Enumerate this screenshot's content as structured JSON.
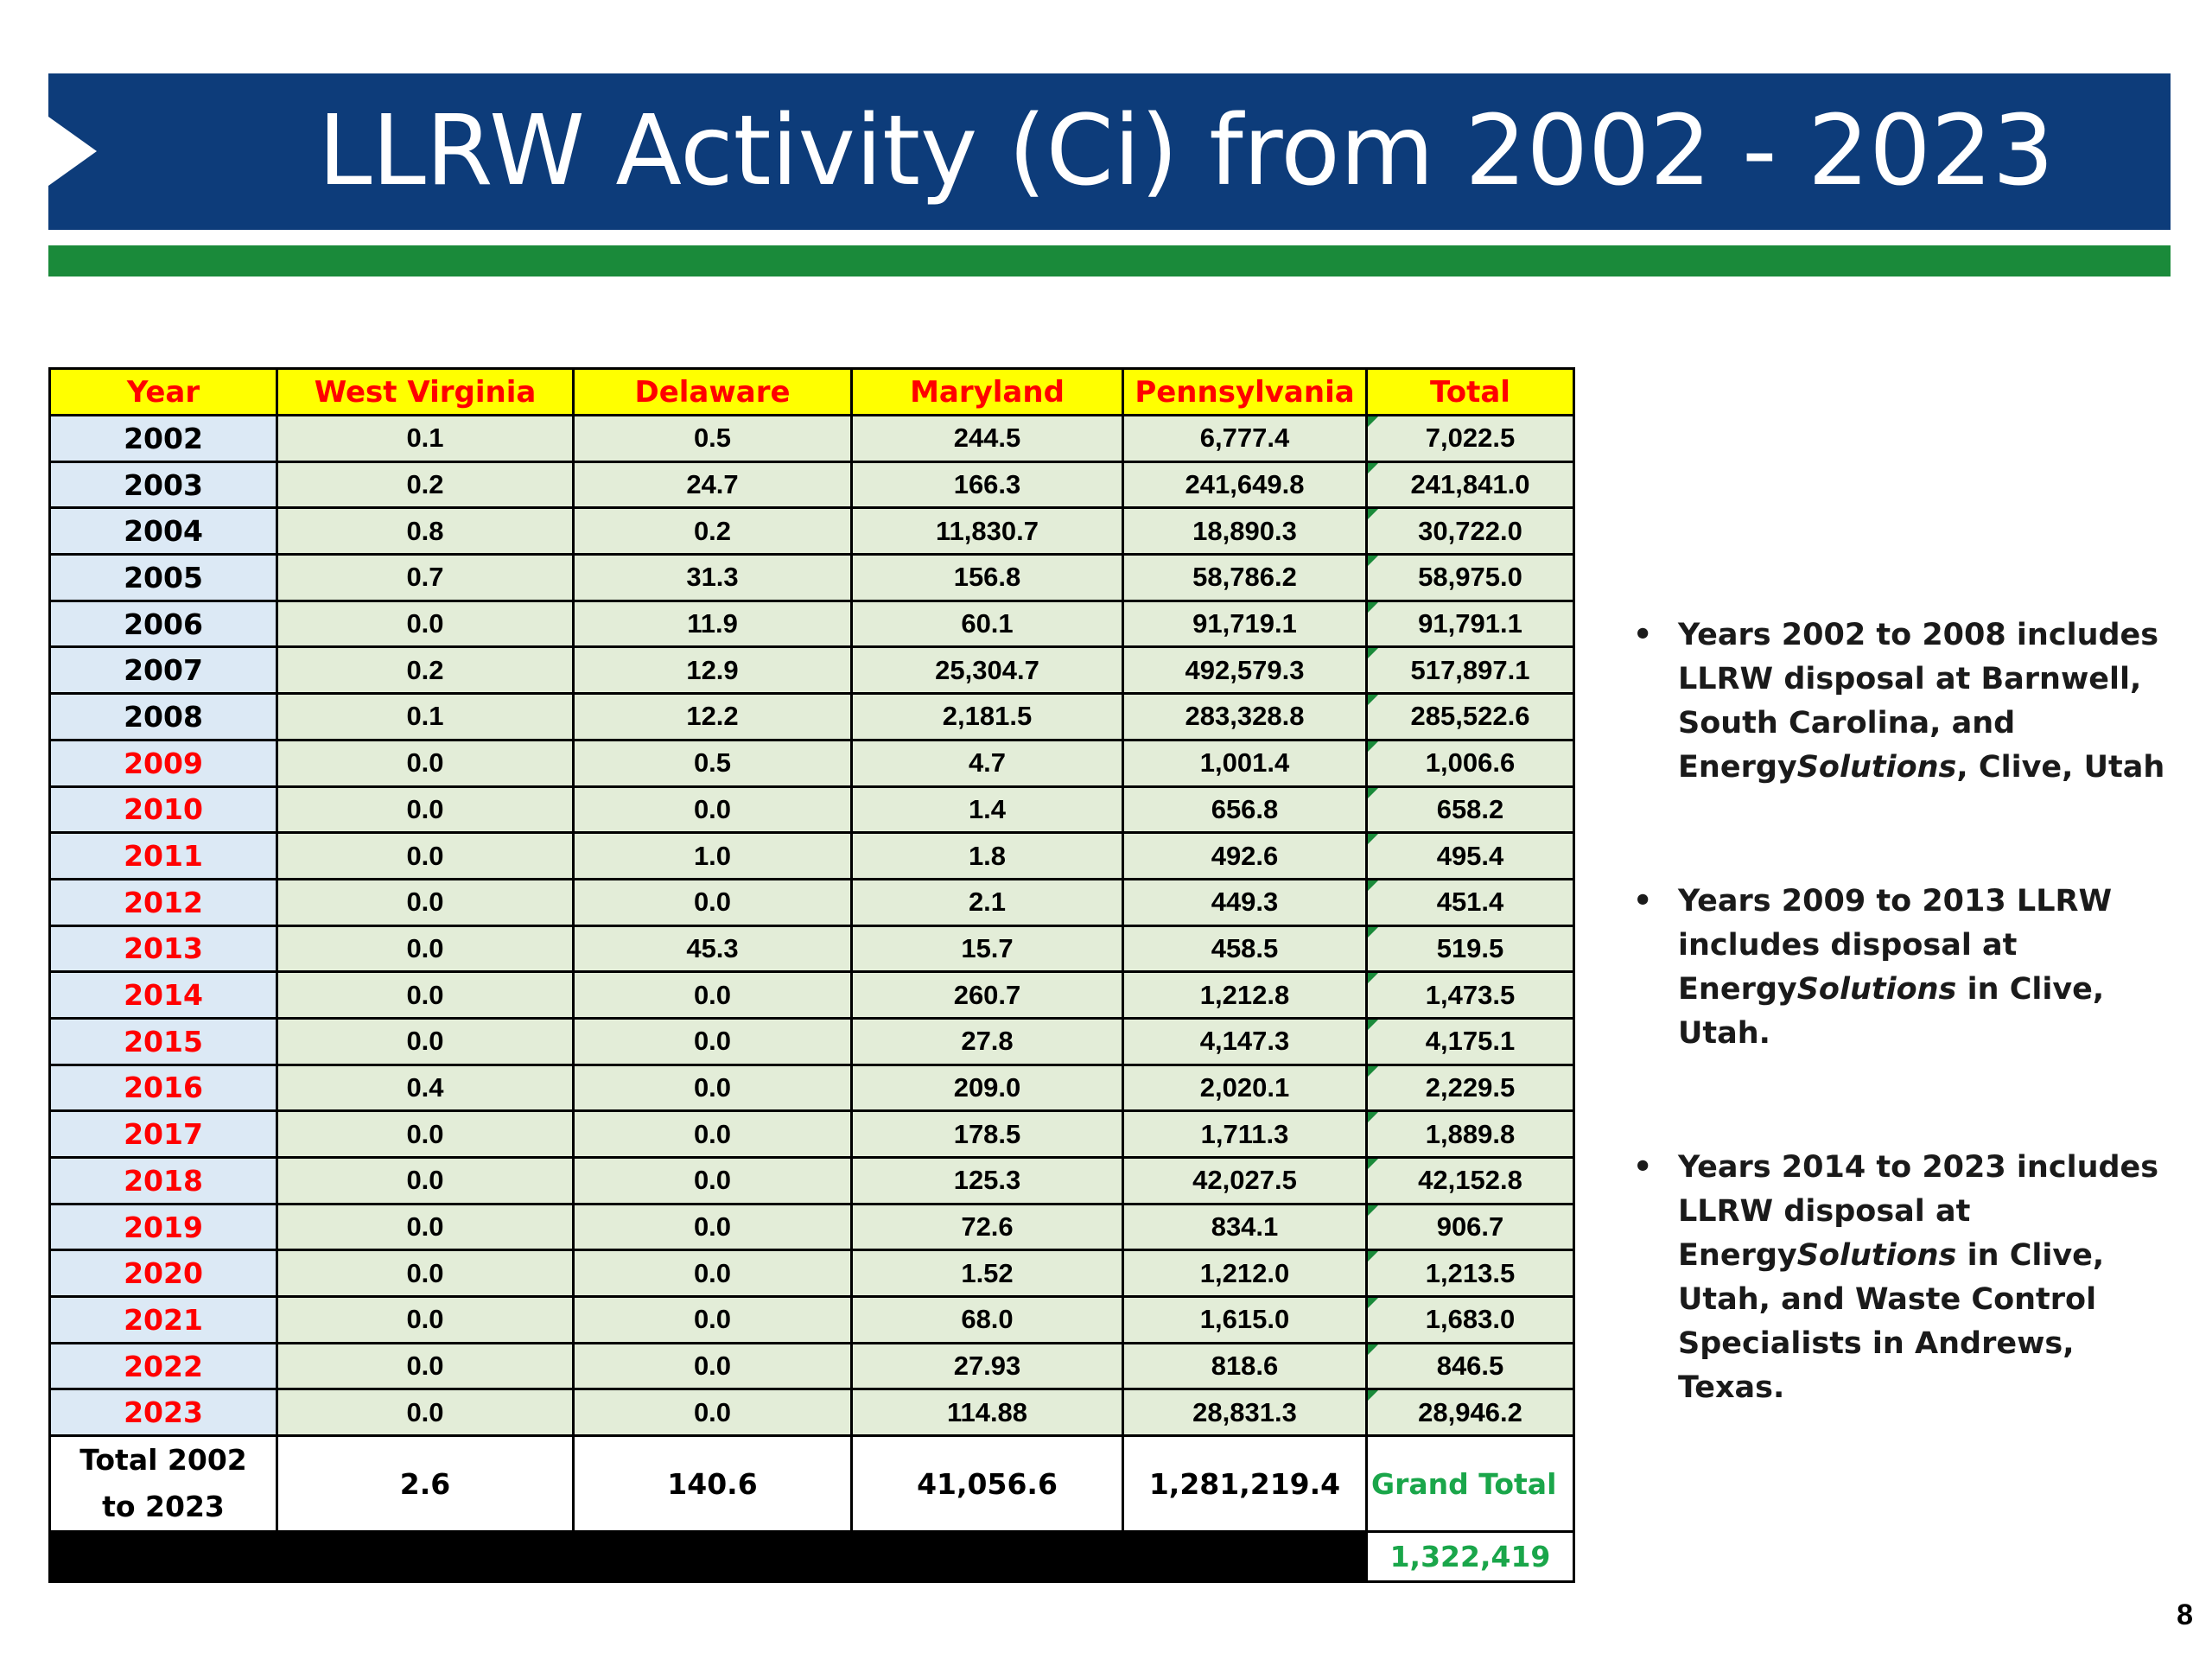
{
  "slide": {
    "title": "LLRW Activity (Ci) from 2002 - 2023",
    "page_number": "8"
  },
  "table": {
    "headers": [
      "Year",
      "West Virginia",
      "Delaware",
      "Maryland",
      "Pennsylvania",
      "Total"
    ],
    "rows": [
      [
        "2002",
        "0.1",
        "0.5",
        "244.5",
        "6,777.4",
        "7,022.5"
      ],
      [
        "2003",
        "0.2",
        "24.7",
        "166.3",
        "241,649.8",
        "241,841.0"
      ],
      [
        "2004",
        "0.8",
        "0.2",
        "11,830.7",
        "18,890.3",
        "30,722.0"
      ],
      [
        "2005",
        "0.7",
        "31.3",
        "156.8",
        "58,786.2",
        "58,975.0"
      ],
      [
        "2006",
        "0.0",
        "11.9",
        "60.1",
        "91,719.1",
        "91,791.1"
      ],
      [
        "2007",
        "0.2",
        "12.9",
        "25,304.7",
        "492,579.3",
        "517,897.1"
      ],
      [
        "2008",
        "0.1",
        "12.2",
        "2,181.5",
        "283,328.8",
        "285,522.6"
      ],
      [
        "2009",
        "0.0",
        "0.5",
        "4.7",
        "1,001.4",
        "1,006.6"
      ],
      [
        "2010",
        "0.0",
        "0.0",
        "1.4",
        "656.8",
        "658.2"
      ],
      [
        "2011",
        "0.0",
        "1.0",
        "1.8",
        "492.6",
        "495.4"
      ],
      [
        "2012",
        "0.0",
        "0.0",
        "2.1",
        "449.3",
        "451.4"
      ],
      [
        "2013",
        "0.0",
        "45.3",
        "15.7",
        "458.5",
        "519.5"
      ],
      [
        "2014",
        "0.0",
        "0.0",
        "260.7",
        "1,212.8",
        "1,473.5"
      ],
      [
        "2015",
        "0.0",
        "0.0",
        "27.8",
        "4,147.3",
        "4,175.1"
      ],
      [
        "2016",
        "0.4",
        "0.0",
        "209.0",
        "2,020.1",
        "2,229.5"
      ],
      [
        "2017",
        "0.0",
        "0.0",
        "178.5",
        "1,711.3",
        "1,889.8"
      ],
      [
        "2018",
        "0.0",
        "0.0",
        "125.3",
        "42,027.5",
        "42,152.8"
      ],
      [
        "2019",
        "0.0",
        "0.0",
        "72.6",
        "834.1",
        "906.7"
      ],
      [
        "2020",
        "0.0",
        "0.0",
        "1.52",
        "1,212.0",
        "1,213.5"
      ],
      [
        "2021",
        "0.0",
        "0.0",
        "68.0",
        "1,615.0",
        "1,683.0"
      ],
      [
        "2022",
        "0.0",
        "0.0",
        "27.93",
        "818.6",
        "846.5"
      ],
      [
        "2023",
        "0.0",
        "0.0",
        "114.88",
        "28,831.3",
        "28,946.2"
      ]
    ],
    "summary": {
      "label_line1": "Total 2002",
      "label_line2": "to 2023",
      "west_virginia": "2.6",
      "delaware": "140.6",
      "maryland": "41,056.6",
      "pennsylvania": "1,281,219.4",
      "grand_total_label": "Grand Total",
      "grand_total_value": "1,322,419"
    },
    "colors": {
      "header_bg": "#ffff00",
      "header_text": "#ff0000",
      "year_bg": "#dce9f5",
      "cell_bg": "#e3edd8",
      "grand_total_text": "#1aa64a"
    }
  },
  "notes": {
    "bullet_glyph": "•",
    "note1": {
      "lead": "Years 2002 to 2008 includes LLRW disposal at Barnwell, South Carolina, and Energy",
      "italic": "Solutions",
      "tail": ", Clive, Utah"
    },
    "note2": {
      "lead": "Years 2009 to 2013 LLRW includes disposal at Energy",
      "italic": "Solutions",
      "tail": " in Clive, Utah."
    },
    "note3": {
      "lead": "Years 2014 to 2023 includes LLRW disposal at Energy",
      "italic": "Solutions",
      "tail": " in Clive, Utah, and Waste Control Specialists in Andrews, Texas."
    }
  },
  "theme": {
    "title_bar": "#0d3c7a",
    "accent_bar": "#1a8a3a"
  }
}
